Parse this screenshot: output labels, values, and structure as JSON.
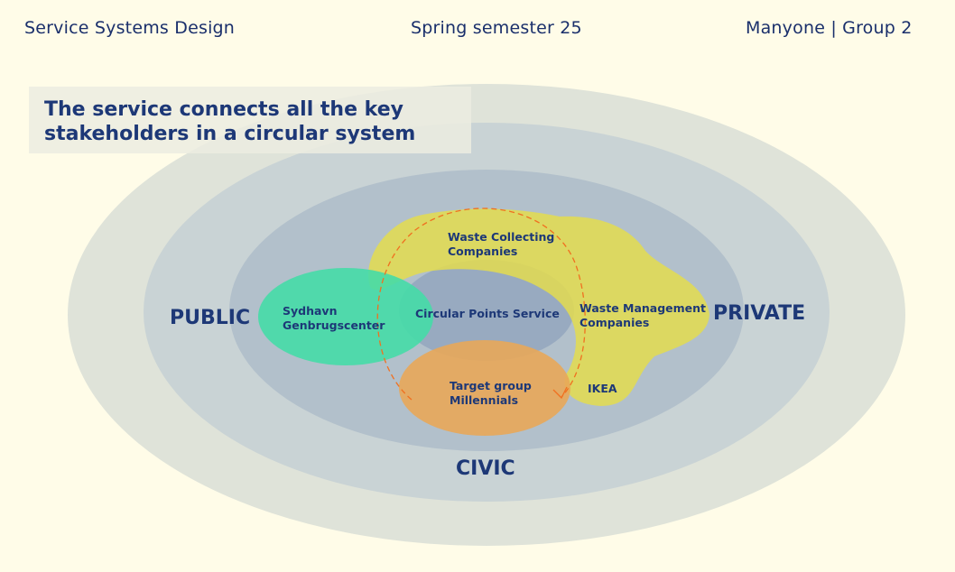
{
  "header": {
    "left": "Service Systems Design",
    "center": "Spring semester 25",
    "right": "Manyone | Group 2"
  },
  "title": "The service connects all the key stakeholders in a circular system",
  "sectors": {
    "public": "PUBLIC",
    "private": "PRIVATE",
    "civic": "CIVIC"
  },
  "stakeholders": {
    "center": "Circular Points Service",
    "waste_collecting": [
      "Waste Collecting",
      "Companies"
    ],
    "waste_management": [
      "Waste Management",
      "Companies"
    ],
    "sydhavn": [
      "Sydhavn",
      "Genbrugscenter"
    ],
    "target_group": [
      "Target group",
      "Millennials"
    ],
    "ikea": "IKEA"
  },
  "colors": {
    "background": "#fffce8",
    "ring_outer": "#dfe3d9",
    "ring_2": "#c9d3d5",
    "ring_3": "#b2c0cb",
    "ring_inner": "#98aac0",
    "private_blob": "#e3dc4f",
    "public_blob": "#45dba7",
    "civic_blob": "#e8a759",
    "loop_arrow": "#f07020",
    "text": "#1d3877"
  }
}
